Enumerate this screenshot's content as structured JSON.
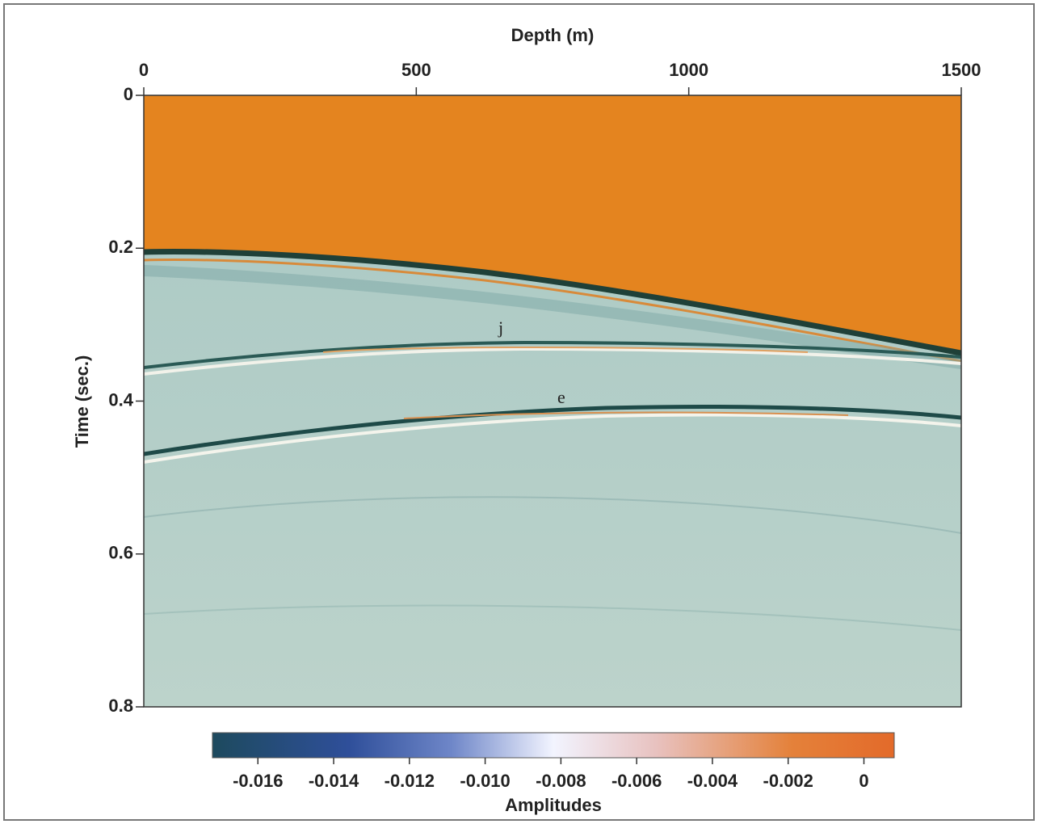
{
  "chart_data": {
    "type": "image",
    "xlabel": "Depth (m)",
    "ylabel": "Time (sec.)",
    "xlim": [
      0,
      1500
    ],
    "xticks": [
      0,
      500,
      1000,
      1500
    ],
    "ylim": [
      0,
      0.8
    ],
    "yticks": [
      0,
      0.2,
      0.4,
      0.6,
      0.8
    ],
    "annotations": [
      "j",
      "e"
    ],
    "colorbar": {
      "label": "Amplitudes",
      "clim": [
        -0.0172,
        0.0008
      ],
      "ticks": [
        -0.016,
        -0.014,
        -0.012,
        {
          "value": -0.01,
          "label": "-0.010"
        },
        -0.008,
        -0.006,
        -0.004,
        -0.002,
        0
      ]
    }
  }
}
